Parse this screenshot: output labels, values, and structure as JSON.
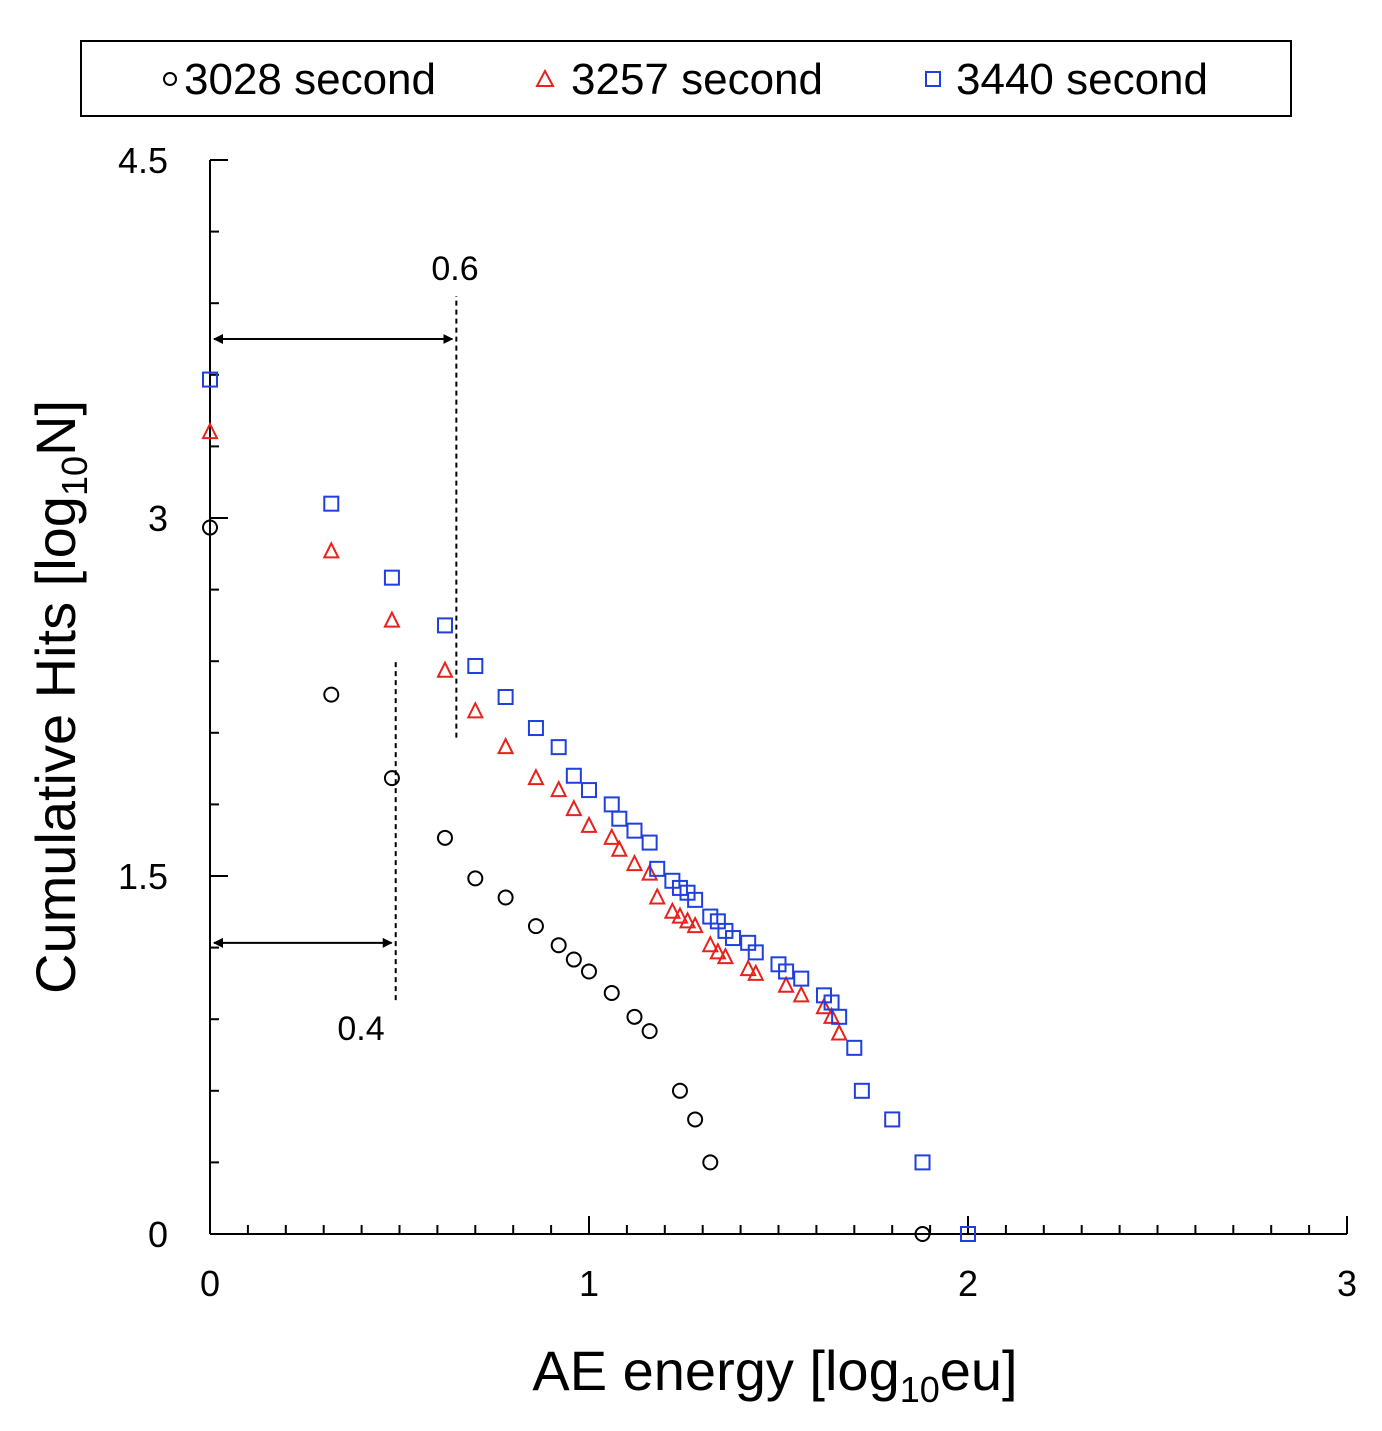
{
  "chart_data": {
    "type": "scatter",
    "title": "",
    "xlabel": "AE energy [log10eu]",
    "xlabel_parts": {
      "pre": "AE energy [log",
      "sub": "10",
      "post": "eu]"
    },
    "ylabel": "Cumulative Hits [log10N]",
    "ylabel_parts": {
      "pre": "Cumulative Hits [log",
      "sub": "10",
      "post": "N]"
    },
    "xlim": [
      0,
      3
    ],
    "ylim": [
      0,
      4.5
    ],
    "x_ticks": [
      "0",
      "1",
      "2",
      "3"
    ],
    "y_ticks": [
      "0",
      "1.5",
      "3",
      "4.5"
    ],
    "legend_position": "top",
    "series": [
      {
        "name": "3028 second",
        "marker": "circle",
        "color": "#000000",
        "points": [
          [
            0.0,
            2.96
          ],
          [
            0.32,
            2.26
          ],
          [
            0.48,
            1.91
          ],
          [
            0.62,
            1.66
          ],
          [
            0.7,
            1.49
          ],
          [
            0.78,
            1.41
          ],
          [
            0.86,
            1.29
          ],
          [
            0.92,
            1.21
          ],
          [
            0.96,
            1.15
          ],
          [
            1.0,
            1.1
          ],
          [
            1.06,
            1.01
          ],
          [
            1.12,
            0.91
          ],
          [
            1.16,
            0.85
          ],
          [
            1.24,
            0.6
          ],
          [
            1.28,
            0.48
          ],
          [
            1.32,
            0.3
          ],
          [
            1.88,
            0.0
          ]
        ]
      },
      {
        "name": "3257 second",
        "marker": "triangle",
        "color": "#e8211d",
        "points": [
          [
            0.0,
            3.36
          ],
          [
            0.32,
            2.86
          ],
          [
            0.48,
            2.57
          ],
          [
            0.62,
            2.36
          ],
          [
            0.7,
            2.19
          ],
          [
            0.78,
            2.04
          ],
          [
            0.86,
            1.91
          ],
          [
            0.92,
            1.86
          ],
          [
            0.96,
            1.78
          ],
          [
            1.0,
            1.71
          ],
          [
            1.06,
            1.66
          ],
          [
            1.08,
            1.61
          ],
          [
            1.12,
            1.55
          ],
          [
            1.16,
            1.51
          ],
          [
            1.18,
            1.41
          ],
          [
            1.22,
            1.35
          ],
          [
            1.24,
            1.33
          ],
          [
            1.26,
            1.31
          ],
          [
            1.28,
            1.29
          ],
          [
            1.32,
            1.21
          ],
          [
            1.34,
            1.18
          ],
          [
            1.36,
            1.16
          ],
          [
            1.42,
            1.11
          ],
          [
            1.44,
            1.09
          ],
          [
            1.52,
            1.04
          ],
          [
            1.56,
            1.0
          ],
          [
            1.62,
            0.95
          ],
          [
            1.64,
            0.91
          ],
          [
            1.66,
            0.84
          ]
        ]
      },
      {
        "name": "3440 second",
        "marker": "square",
        "color": "#1f3fe0",
        "points": [
          [
            0.0,
            3.58
          ],
          [
            0.32,
            3.06
          ],
          [
            0.48,
            2.75
          ],
          [
            0.62,
            2.55
          ],
          [
            0.7,
            2.38
          ],
          [
            0.78,
            2.25
          ],
          [
            0.86,
            2.12
          ],
          [
            0.92,
            2.04
          ],
          [
            0.96,
            1.92
          ],
          [
            1.0,
            1.86
          ],
          [
            1.06,
            1.8
          ],
          [
            1.08,
            1.74
          ],
          [
            1.12,
            1.69
          ],
          [
            1.16,
            1.64
          ],
          [
            1.18,
            1.53
          ],
          [
            1.22,
            1.48
          ],
          [
            1.24,
            1.45
          ],
          [
            1.26,
            1.43
          ],
          [
            1.28,
            1.4
          ],
          [
            1.32,
            1.33
          ],
          [
            1.34,
            1.31
          ],
          [
            1.36,
            1.27
          ],
          [
            1.38,
            1.24
          ],
          [
            1.42,
            1.22
          ],
          [
            1.44,
            1.18
          ],
          [
            1.5,
            1.13
          ],
          [
            1.52,
            1.1
          ],
          [
            1.56,
            1.07
          ],
          [
            1.62,
            1.0
          ],
          [
            1.64,
            0.97
          ],
          [
            1.66,
            0.91
          ],
          [
            1.7,
            0.78
          ],
          [
            1.72,
            0.6
          ],
          [
            1.8,
            0.48
          ],
          [
            1.88,
            0.3
          ],
          [
            2.0,
            0.0
          ]
        ]
      }
    ],
    "annotations": [
      {
        "label": "0.6",
        "x_from": 0.0,
        "x_to": 0.65,
        "arrow_y": 3.75,
        "dash_y_from": 2.08,
        "dash_y_to": 3.93
      },
      {
        "label": "0.4",
        "x_from": 0.0,
        "x_to": 0.49,
        "arrow_y": 1.22,
        "dash_y_from": 0.98,
        "dash_y_to": 2.4
      }
    ]
  }
}
